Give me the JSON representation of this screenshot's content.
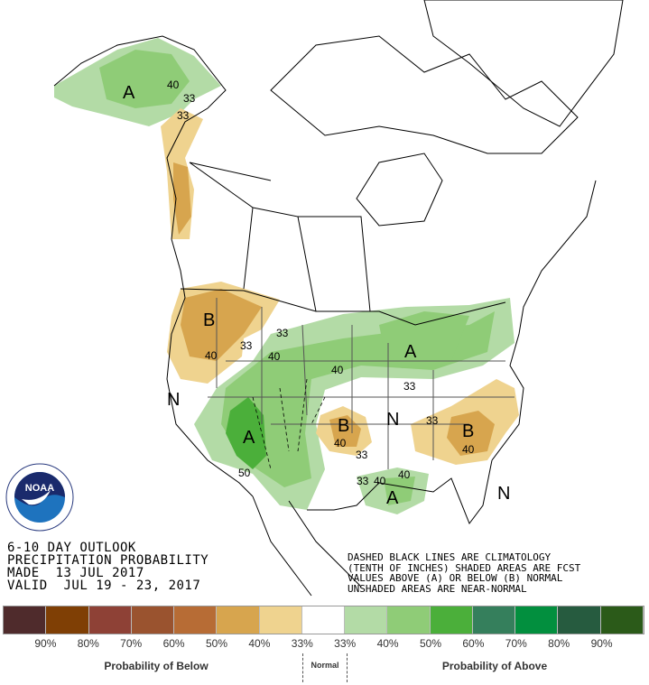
{
  "header": {
    "title_line1": "6-10 DAY OUTLOOK",
    "title_line2": "PRECIPITATION PROBABILITY",
    "made": "MADE  13 JUL 2017",
    "valid": "VALID  JUL 19 - 23, 2017"
  },
  "notes": {
    "line1": "DASHED BLACK LINES ARE CLIMATOLOGY",
    "line2": "(TENTH OF INCHES) SHADED AREAS ARE FCST",
    "line3": "VALUES ABOVE (A) OR BELOW (B) NORMAL",
    "line4": "UNSHADED AREAS ARE NEAR-NORMAL"
  },
  "logo": {
    "text": "NOAA",
    "ring_text": "NATIONAL OCEANIC AND ATMOSPHERIC ADMINISTRATION · U.S. DEPARTMENT OF COMMERCE"
  },
  "legend": {
    "colors": [
      "#4f2b2c",
      "#7f3f05",
      "#8e4136",
      "#9a532f",
      "#b76c35",
      "#d7a54e",
      "#efd38f",
      "#ffffff",
      "#b3dba6",
      "#8fcc77",
      "#4baf3a",
      "#357f5c",
      "#028f3e",
      "#265b3f",
      "#2b5a19"
    ],
    "labels": [
      "90%",
      "80%",
      "70%",
      "60%",
      "50%",
      "40%",
      "33%",
      "33%",
      "40%",
      "50%",
      "60%",
      "70%",
      "80%",
      "90%"
    ],
    "below_caption": "Probability of Below",
    "normal_caption": "Normal",
    "above_caption": "Probability of Above"
  },
  "map_labels": [
    "A",
    "40",
    "33",
    "33",
    "B",
    "40",
    "33",
    "N",
    "33",
    "40",
    "40",
    "A",
    "33",
    "N",
    "33",
    "B",
    "40",
    "N",
    "33",
    "B",
    "40",
    "A",
    "50",
    "33",
    "40",
    "40",
    "A"
  ]
}
